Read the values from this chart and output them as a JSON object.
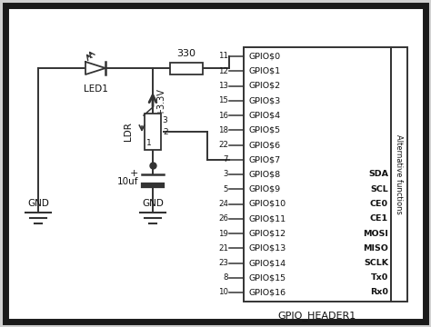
{
  "gpio_pins": [
    "GPIO$0",
    "GPIO$1",
    "GPIO$2",
    "GPIO$3",
    "GPIO$4",
    "GPIO$5",
    "GPIO$6",
    "GPIO$7",
    "GPIO$8",
    "GPIO$9",
    "GPIO$10",
    "GPIO$11",
    "GPIO$12",
    "GPIO$13",
    "GPIO$14",
    "GPIO$15",
    "GPIO$16"
  ],
  "pin_numbers": [
    "11",
    "12",
    "13",
    "15",
    "16",
    "18",
    "22",
    "7",
    "3",
    "5",
    "24",
    "26",
    "19",
    "21",
    "23",
    "8",
    "10"
  ],
  "alt_functions": [
    "",
    "",
    "",
    "",
    "",
    "",
    "",
    "",
    "SDA",
    "SCL",
    "CE0",
    "CE1",
    "MOSI",
    "MISO",
    "SCLK",
    "Tx0",
    "Rx0"
  ],
  "header_label": "GPIO_HEADER1",
  "alt_label": "Alternative functions",
  "resistor_label": "330",
  "cap_label": "10uf",
  "led_label": "LED1",
  "ldr_label": "LDR",
  "vcc_label": "+3.3V",
  "gnd1_label": "GND",
  "gnd2_label": "GND",
  "ldr_pin1": "1",
  "ldr_pin2": "2",
  "ldr_pin3": "3"
}
